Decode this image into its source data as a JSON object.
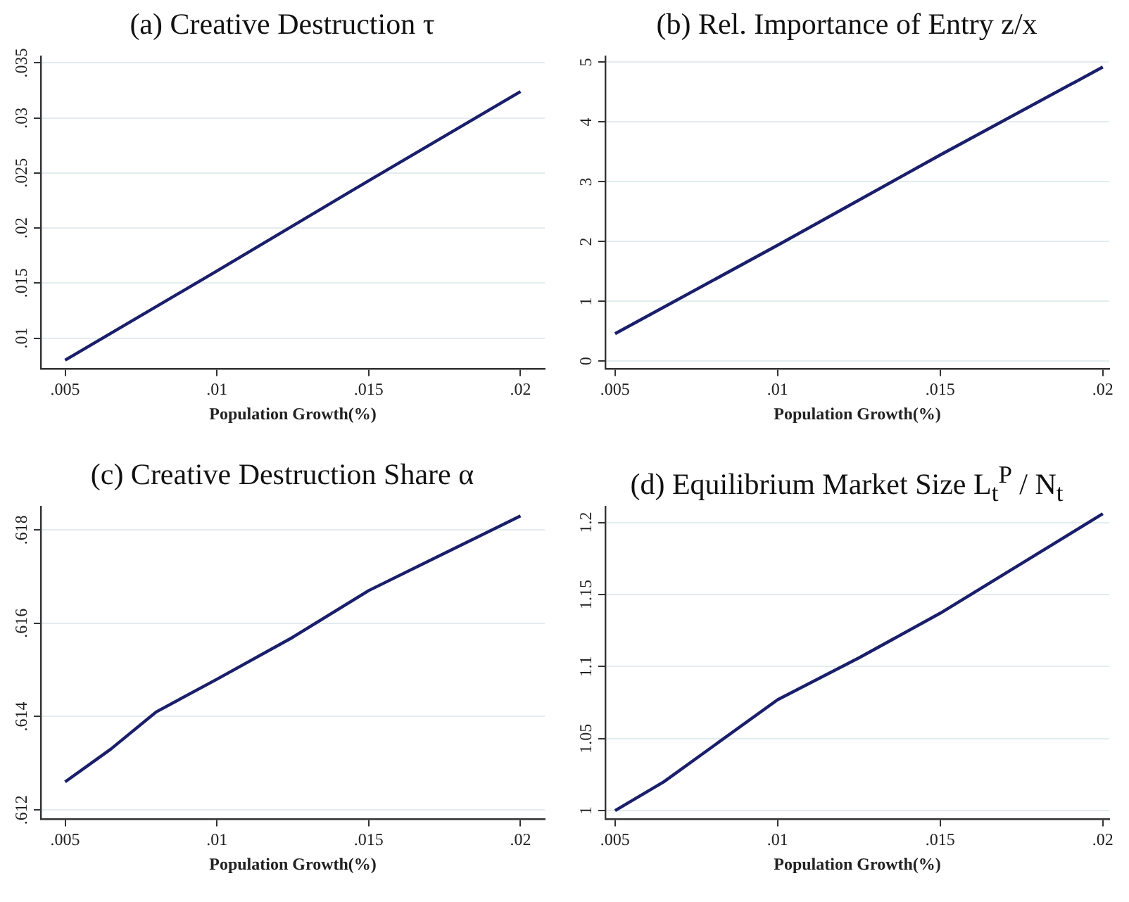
{
  "chart_data": [
    {
      "type": "line",
      "title": "(a) Creative Destruction τ",
      "xlabel": "Population Growth(%)",
      "x": [
        0.005,
        0.01,
        0.015,
        0.02
      ],
      "series": [
        {
          "color": "#1a1f6b",
          "values": [
            0.008,
            0.0161,
            0.0243,
            0.0324
          ]
        }
      ],
      "xlim": [
        0.0042,
        0.0208
      ],
      "xticks": [
        {
          "value": 0.005,
          "label": ".005"
        },
        {
          "value": 0.01,
          "label": ".01"
        },
        {
          "value": 0.015,
          "label": ".015"
        },
        {
          "value": 0.02,
          "label": ".02"
        }
      ],
      "ylim": [
        0.0072,
        0.0356
      ],
      "yticks": [
        {
          "value": 0.01,
          "label": ".01"
        },
        {
          "value": 0.015,
          "label": ".015"
        },
        {
          "value": 0.02,
          "label": ".02"
        },
        {
          "value": 0.025,
          "label": ".025"
        },
        {
          "value": 0.03,
          "label": ".03"
        },
        {
          "value": 0.035,
          "label": ".035"
        }
      ],
      "grid": "y",
      "legend": false,
      "marker": "none",
      "line_style": "solid"
    },
    {
      "type": "line",
      "title": "(b) Rel. Importance of Entry z/x",
      "xlabel": "Population Growth(%)",
      "x": [
        0.005,
        0.01,
        0.015,
        0.02
      ],
      "series": [
        {
          "color": "#1a1f6b",
          "values": [
            0.46,
            1.94,
            3.45,
            4.92
          ]
        }
      ],
      "xlim": [
        0.0047,
        0.0202
      ],
      "xticks": [
        {
          "value": 0.005,
          "label": ".005"
        },
        {
          "value": 0.01,
          "label": ".01"
        },
        {
          "value": 0.015,
          "label": ".015"
        },
        {
          "value": 0.02,
          "label": ".02"
        }
      ],
      "ylim": [
        -0.13,
        5.1
      ],
      "yticks": [
        0,
        1,
        2,
        3,
        4,
        5
      ],
      "grid": "y",
      "legend": false,
      "marker": "none",
      "line_style": "solid"
    },
    {
      "type": "line",
      "title": "(c) Creative Destruction Share α",
      "xlabel": "Population Growth(%)",
      "x": [
        0.005,
        0.0065,
        0.008,
        0.01,
        0.0125,
        0.015,
        0.0175,
        0.02
      ],
      "series": [
        {
          "color": "#1a1f6b",
          "values": [
            0.6126,
            0.6133,
            0.6141,
            0.6148,
            0.6157,
            0.6167,
            0.6175,
            0.6183
          ]
        }
      ],
      "xlim": [
        0.0042,
        0.0208
      ],
      "xticks": [
        {
          "value": 0.005,
          "label": ".005"
        },
        {
          "value": 0.01,
          "label": ".01"
        },
        {
          "value": 0.015,
          "label": ".015"
        },
        {
          "value": 0.02,
          "label": ".02"
        }
      ],
      "ylim": [
        0.6118,
        0.6185
      ],
      "yticks": [
        {
          "value": 0.612,
          "label": ".612"
        },
        {
          "value": 0.614,
          "label": ".614"
        },
        {
          "value": 0.616,
          "label": ".616"
        },
        {
          "value": 0.618,
          "label": ".618"
        }
      ],
      "grid": "y",
      "legend": false,
      "marker": "none",
      "line_style": "solid"
    },
    {
      "type": "line",
      "title": "(d) Equilibrium Market Size L$_{t}$$^{P}$ / N$_{t}$",
      "xlabel": "Population Growth(%)",
      "x": [
        0.005,
        0.0065,
        0.01,
        0.0125,
        0.015,
        0.02
      ],
      "series": [
        {
          "color": "#1a1f6b",
          "values": [
            1.0,
            1.02,
            1.077,
            1.106,
            1.137,
            1.206
          ]
        }
      ],
      "xlim": [
        0.0047,
        0.0202
      ],
      "xticks": [
        {
          "value": 0.005,
          "label": ".005"
        },
        {
          "value": 0.01,
          "label": ".01"
        },
        {
          "value": 0.015,
          "label": ".015"
        },
        {
          "value": 0.02,
          "label": ".02"
        }
      ],
      "ylim": [
        0.994,
        1.211
      ],
      "yticks": [
        1,
        1.05,
        1.1,
        1.15,
        1.2
      ],
      "grid": "y",
      "legend": false,
      "marker": "none",
      "line_style": "solid"
    }
  ]
}
